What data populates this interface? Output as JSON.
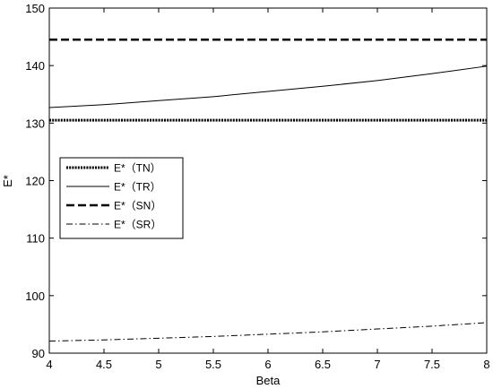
{
  "chart_data": {
    "type": "line",
    "title": "",
    "xlabel": "Beta",
    "ylabel": "E*",
    "xlim": [
      4,
      8
    ],
    "ylim": [
      90,
      150
    ],
    "xticks": [
      4,
      4.5,
      5,
      5.5,
      6,
      6.5,
      7,
      7.5,
      8
    ],
    "xtick_labels": [
      "4",
      "4.5",
      "5",
      "5.5",
      "6",
      "6.5",
      "7",
      "7.5",
      "8"
    ],
    "yticks": [
      90,
      100,
      110,
      120,
      130,
      140,
      150
    ],
    "ytick_labels": [
      "90",
      "100",
      "110",
      "120",
      "130",
      "140",
      "150"
    ],
    "grid": false,
    "legend_position": "middle-left",
    "x": [
      4,
      4.5,
      5,
      5.5,
      6,
      6.5,
      7,
      7.5,
      8
    ],
    "series": [
      {
        "name": "E*（TN）",
        "line_style": "dotted",
        "stroke_width": 3,
        "color": "#000000",
        "values": [
          130.5,
          130.5,
          130.5,
          130.5,
          130.5,
          130.5,
          130.5,
          130.5,
          130.5
        ]
      },
      {
        "name": "E*（TR）",
        "line_style": "solid",
        "stroke_width": 1,
        "color": "#000000",
        "values": [
          132.7,
          133.2,
          133.9,
          134.6,
          135.5,
          136.4,
          137.4,
          138.6,
          139.9
        ]
      },
      {
        "name": "E*（SN）",
        "line_style": "dashed",
        "stroke_width": 2.5,
        "color": "#000000",
        "values": [
          144.5,
          144.5,
          144.5,
          144.5,
          144.5,
          144.5,
          144.5,
          144.5,
          144.5
        ]
      },
      {
        "name": "E*（SR）",
        "line_style": "dashdot",
        "stroke_width": 1,
        "color": "#000000",
        "values": [
          92.1,
          92.3,
          92.6,
          92.9,
          93.3,
          93.7,
          94.2,
          94.7,
          95.3
        ]
      }
    ]
  }
}
